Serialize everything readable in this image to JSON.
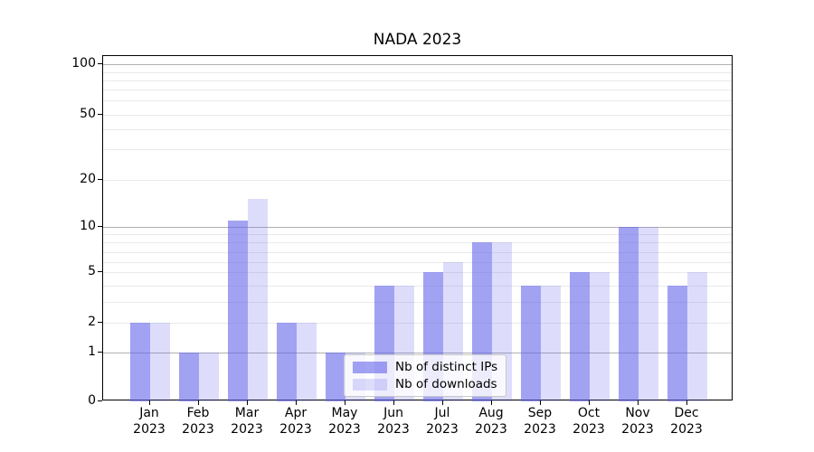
{
  "chart_data": {
    "type": "bar",
    "title": "NADA 2023",
    "categories": [
      "Jan",
      "Feb",
      "Mar",
      "Apr",
      "May",
      "Jun",
      "Jul",
      "Aug",
      "Sep",
      "Oct",
      "Nov",
      "Dec"
    ],
    "category_year": "2023",
    "series": [
      {
        "name": "Nb of distinct IPs",
        "color": "rgba(100,100,235,0.60)",
        "values": [
          2,
          1,
          11,
          2,
          1,
          4,
          5,
          8,
          4,
          5,
          10,
          4
        ]
      },
      {
        "name": "Nb of downloads",
        "color": "rgba(100,100,235,0.22)",
        "values": [
          2,
          1,
          15,
          2,
          1,
          4,
          6,
          8,
          4,
          5,
          10,
          5
        ]
      }
    ],
    "xlabel": "",
    "ylabel": "",
    "yscale": "symlog",
    "ylim": [
      0,
      112
    ],
    "y_ticks": [
      0,
      1,
      2,
      5,
      10,
      20,
      50,
      100
    ],
    "y_major_gridlines": [
      1,
      10,
      100
    ],
    "y_minor_gridlines": [
      2,
      3,
      4,
      5,
      6,
      7,
      8,
      9,
      20,
      30,
      40,
      50,
      60,
      70,
      80,
      90
    ],
    "grid": true,
    "legend_position": "inside-lower-center",
    "colors": {
      "bar_base": "#6464eb",
      "grid_major": "#b0b0b0",
      "grid_minor": "#eaeaea",
      "spine": "#000000",
      "background": "#ffffff"
    }
  }
}
